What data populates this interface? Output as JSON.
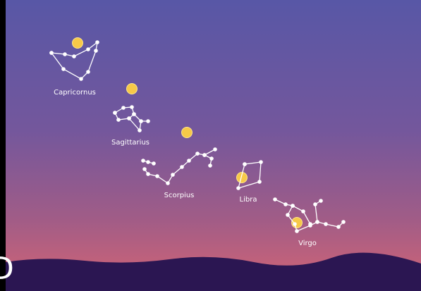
{
  "constellations": [
    {
      "label": "Capricornus"
    },
    {
      "label": "Sagittarius"
    },
    {
      "label": "Scorpius"
    },
    {
      "label": "Libra"
    },
    {
      "label": "Virgo"
    }
  ],
  "edge_text": "D"
}
